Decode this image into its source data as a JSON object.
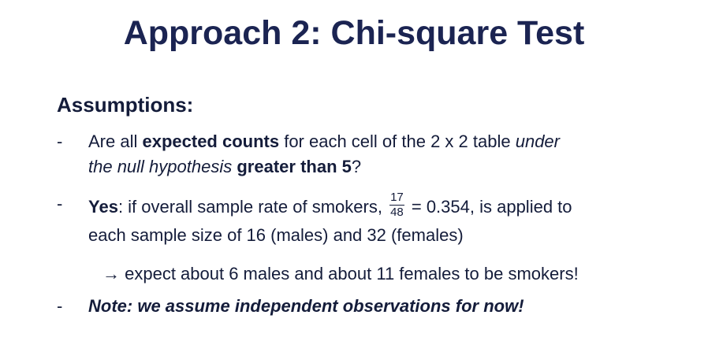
{
  "title": "Approach 2: Chi-square Test",
  "heading": "Assumptions:",
  "bullet_marker": "-",
  "bullet1": {
    "t1": "Are all ",
    "b1": "expected counts",
    "t2": " for each cell of the 2 x 2 table ",
    "i1": "under",
    "i2": "the null hypothesis",
    "t3": " ",
    "b2": "greater than 5",
    "t4": "?"
  },
  "bullet2": {
    "b1": "Yes",
    "t1": ": if overall sample rate of smokers, ",
    "frac_num": "17",
    "frac_den": "48",
    "t2": " = 0.354, is applied to",
    "line2": "each sample size of 16 (males) and 32 (females)"
  },
  "arrow_line": {
    "arrow": "→",
    "text": " expect about 6 males and about 11 females to be smokers!"
  },
  "bullet3": {
    "text": "Note: we assume independent observations for now!"
  }
}
